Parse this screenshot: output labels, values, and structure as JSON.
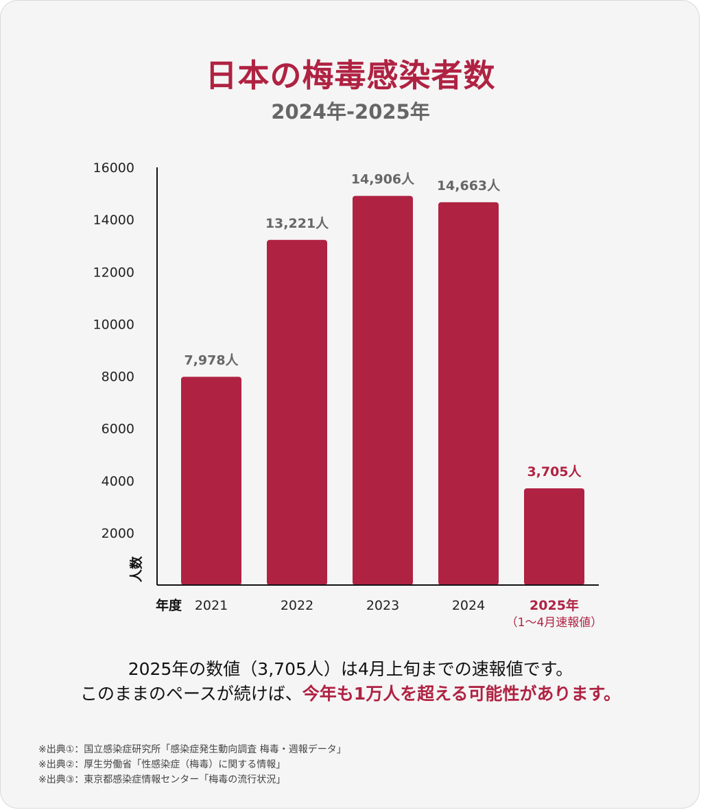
{
  "title": "日本の梅毒感染者数",
  "subtitle": "2024年-2025年",
  "colors": {
    "bar": "#b02242",
    "label": "#666666",
    "highlight": "#b02242"
  },
  "chart_data": {
    "type": "bar",
    "categories": [
      "2021",
      "2022",
      "2023",
      "2024",
      "2025年"
    ],
    "values": [
      7978,
      13221,
      14906,
      14663,
      3705
    ],
    "data_labels": [
      "7,978人",
      "13,221人",
      "14,906人",
      "14,663人",
      "3,705人"
    ],
    "highlight_index": 4,
    "highlight_note": "（1〜4月速報値）",
    "yticks": [
      2000,
      4000,
      6000,
      8000,
      10000,
      12000,
      14000,
      16000
    ],
    "ylim": [
      0,
      16000
    ],
    "ylabel": "人数",
    "xlabel": "年度",
    "grid": false
  },
  "notes": {
    "line1": "2025年の数値（3,705人）は4月上旬までの速報値です。",
    "line2_prefix": "このままのペースが続けば、",
    "line2_highlight": "今年も1万人を超える可能性があります。"
  },
  "sources": [
    "※出典①：国立感染症研究所「感染症発生動向調査 梅毒・週報データ」",
    "※出典②：厚生労働省「性感染症（梅毒）に関する情報」",
    "※出典③：東京都感染症情報センター「梅毒の流行状況」"
  ]
}
